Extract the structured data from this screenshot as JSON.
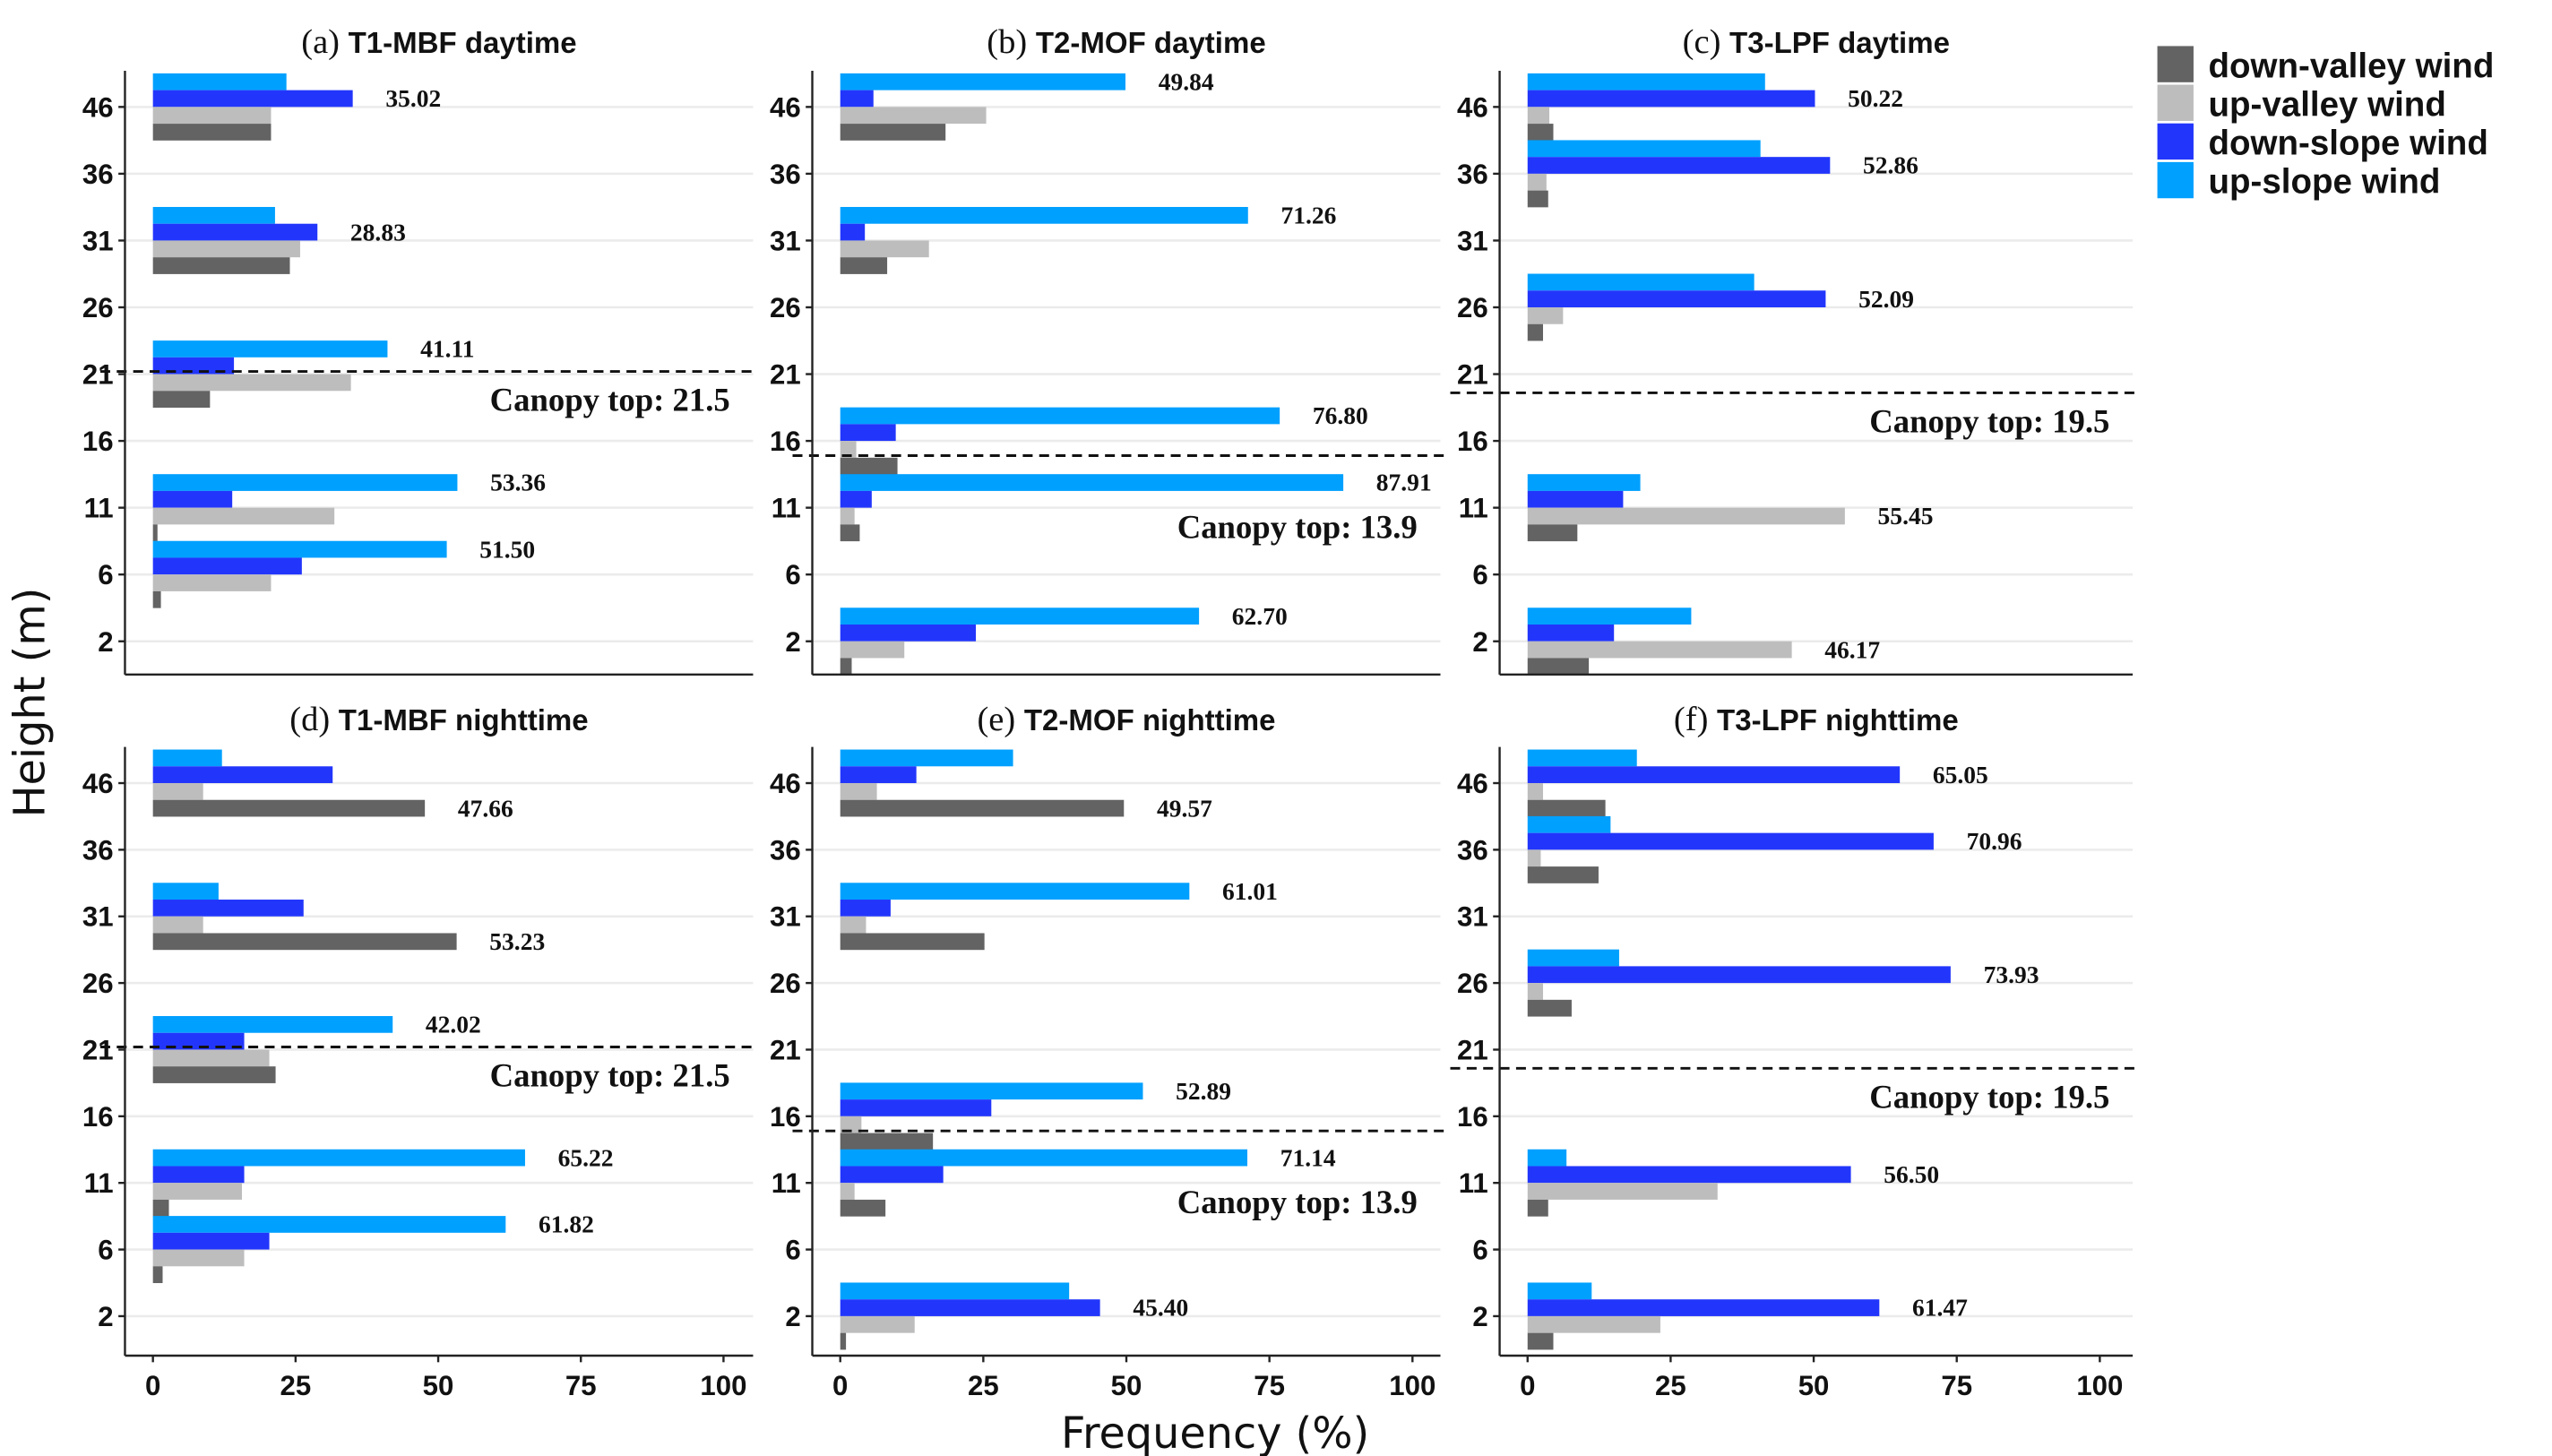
{
  "chart_data": {
    "type": "bar",
    "orientation": "horizontal",
    "xlabel": "Frequency (%)",
    "ylabel": "Height (m)",
    "xlim": [
      0,
      100
    ],
    "xticks": [
      "0",
      "25",
      "50",
      "75",
      "100"
    ],
    "height_levels": [
      "46",
      "36",
      "31",
      "26",
      "21",
      "16",
      "11",
      "6",
      "2"
    ],
    "grid": "horizontal major lines",
    "legend_position": "top-right",
    "legend": [
      {
        "key": "down_valley",
        "name": "down-valley wind",
        "color": "#636363"
      },
      {
        "key": "up_valley",
        "name": "up-valley wind",
        "color": "#bdbdbd"
      },
      {
        "key": "down_slope",
        "name": "down-slope wind",
        "color": "#2236fb"
      },
      {
        "key": "up_slope",
        "name": "up-slope wind",
        "color": "#00a0ff"
      }
    ],
    "panels": [
      {
        "prefix": "(a)",
        "title": "T1-MBF daytime",
        "canopy_top": 21.5,
        "canopy_label": "Canopy top: 21.5",
        "canopy_level_position": 21.2,
        "groups": [
          {
            "height": "46",
            "up_slope": 23.4,
            "down_slope": 35.02,
            "up_valley": 20.7,
            "down_valley": 20.7,
            "label": "35.02",
            "label_series": "down_slope"
          },
          {
            "height": "31",
            "up_slope": 21.4,
            "down_slope": 28.83,
            "up_valley": 25.8,
            "down_valley": 24.0,
            "label": "28.83",
            "label_series": "down_slope"
          },
          {
            "height": "21",
            "up_slope": 41.11,
            "down_slope": 14.2,
            "up_valley": 34.7,
            "down_valley": 10.0,
            "label": "41.11",
            "label_series": "up_slope"
          },
          {
            "height": "11",
            "up_slope": 53.36,
            "down_slope": 13.9,
            "up_valley": 31.8,
            "down_valley": 0.8,
            "label": "53.36",
            "label_series": "up_slope"
          },
          {
            "height": "6",
            "up_slope": 51.5,
            "down_slope": 26.1,
            "up_valley": 20.7,
            "down_valley": 1.4,
            "label": "51.50",
            "label_series": "up_slope"
          }
        ]
      },
      {
        "prefix": "(b)",
        "title": "T2-MOF daytime",
        "canopy_top": 13.9,
        "canopy_label": "Canopy top: 13.9",
        "canopy_level_position": 14.9,
        "groups": [
          {
            "height": "46",
            "up_slope": 49.84,
            "down_slope": 5.8,
            "up_valley": 25.5,
            "down_valley": 18.4,
            "label": "49.84",
            "label_series": "up_slope"
          },
          {
            "height": "31",
            "up_slope": 71.26,
            "down_slope": 4.3,
            "up_valley": 15.5,
            "down_valley": 8.2,
            "label": "71.26",
            "label_series": "up_slope"
          },
          {
            "height": "16",
            "up_slope": 76.8,
            "down_slope": 9.7,
            "up_valley": 2.8,
            "down_valley": 10.0,
            "label": "76.80",
            "label_series": "up_slope"
          },
          {
            "height": "11",
            "up_slope": 87.91,
            "down_slope": 5.5,
            "up_valley": 2.5,
            "down_valley": 3.4,
            "label": "87.91",
            "label_series": "up_slope"
          },
          {
            "height": "2",
            "up_slope": 62.7,
            "down_slope": 23.7,
            "up_valley": 11.2,
            "down_valley": 2.0,
            "label": "62.70",
            "label_series": "up_slope"
          }
        ]
      },
      {
        "prefix": "(c)",
        "title": "T3-LPF daytime",
        "canopy_top": 19.5,
        "canopy_label": "Canopy top: 19.5",
        "canopy_level_position": 19.6,
        "groups": [
          {
            "height": "46",
            "up_slope": 41.5,
            "down_slope": 50.22,
            "up_valley": 3.8,
            "down_valley": 4.5,
            "label": "50.22",
            "label_series": "down_slope"
          },
          {
            "height": "36",
            "up_slope": 40.7,
            "down_slope": 52.86,
            "up_valley": 3.3,
            "down_valley": 3.6,
            "label": "52.86",
            "label_series": "down_slope"
          },
          {
            "height": "26",
            "up_slope": 39.6,
            "down_slope": 52.09,
            "up_valley": 6.2,
            "down_valley": 2.7,
            "label": "52.09",
            "label_series": "down_slope"
          },
          {
            "height": "11",
            "up_slope": 19.7,
            "down_slope": 16.7,
            "up_valley": 55.45,
            "down_valley": 8.7,
            "label": "55.45",
            "label_series": "up_valley"
          },
          {
            "height": "2",
            "up_slope": 28.6,
            "down_slope": 15.1,
            "up_valley": 46.17,
            "down_valley": 10.7,
            "label": "46.17",
            "label_series": "up_valley"
          }
        ]
      },
      {
        "prefix": "(d)",
        "title": "T1-MBF nighttime",
        "canopy_top": 21.5,
        "canopy_label": "Canopy top: 21.5",
        "canopy_level_position": 21.2,
        "groups": [
          {
            "height": "46",
            "up_slope": 12.1,
            "down_slope": 31.5,
            "up_valley": 8.8,
            "down_valley": 47.66,
            "label": "47.66",
            "label_series": "down_valley"
          },
          {
            "height": "31",
            "up_slope": 11.5,
            "down_slope": 26.4,
            "up_valley": 8.8,
            "down_valley": 53.23,
            "label": "53.23",
            "label_series": "down_valley"
          },
          {
            "height": "21",
            "up_slope": 42.02,
            "down_slope": 16.0,
            "up_valley": 20.4,
            "down_valley": 21.5,
            "label": "42.02",
            "label_series": "up_slope"
          },
          {
            "height": "11",
            "up_slope": 65.22,
            "down_slope": 16.0,
            "up_valley": 15.6,
            "down_valley": 2.8,
            "label": "65.22",
            "label_series": "up_slope"
          },
          {
            "height": "6",
            "up_slope": 61.82,
            "down_slope": 20.4,
            "up_valley": 16.0,
            "down_valley": 1.7,
            "label": "61.82",
            "label_series": "up_slope"
          }
        ]
      },
      {
        "prefix": "(e)",
        "title": "T2-MOF nighttime",
        "canopy_top": 13.9,
        "canopy_label": "Canopy top: 13.9",
        "canopy_level_position": 14.9,
        "groups": [
          {
            "height": "46",
            "up_slope": 30.2,
            "down_slope": 13.3,
            "up_valley": 6.4,
            "down_valley": 49.57,
            "label": "49.57",
            "label_series": "down_valley"
          },
          {
            "height": "31",
            "up_slope": 61.01,
            "down_slope": 8.8,
            "up_valley": 4.5,
            "down_valley": 25.2,
            "label": "61.01",
            "label_series": "up_slope"
          },
          {
            "height": "16",
            "up_slope": 52.89,
            "down_slope": 26.4,
            "up_valley": 3.7,
            "down_valley": 16.2,
            "label": "52.89",
            "label_series": "up_slope"
          },
          {
            "height": "11",
            "up_slope": 71.14,
            "down_slope": 18.0,
            "up_valley": 2.5,
            "down_valley": 7.9,
            "label": "71.14",
            "label_series": "up_slope"
          },
          {
            "height": "2",
            "up_slope": 40.0,
            "down_slope": 45.4,
            "up_valley": 13.0,
            "down_valley": 1.0,
            "label": "45.40",
            "label_series": "down_slope"
          }
        ]
      },
      {
        "prefix": "(f)",
        "title": "T3-LPF nighttime",
        "canopy_top": 19.5,
        "canopy_label": "Canopy top: 19.5",
        "canopy_level_position": 19.6,
        "groups": [
          {
            "height": "46",
            "up_slope": 19.1,
            "down_slope": 65.05,
            "up_valley": 2.7,
            "down_valley": 13.6,
            "label": "65.05",
            "label_series": "down_slope"
          },
          {
            "height": "36",
            "up_slope": 14.5,
            "down_slope": 70.96,
            "up_valley": 2.3,
            "down_valley": 12.4,
            "label": "70.96",
            "label_series": "down_slope"
          },
          {
            "height": "26",
            "up_slope": 16.0,
            "down_slope": 73.93,
            "up_valley": 2.7,
            "down_valley": 7.7,
            "label": "73.93",
            "label_series": "down_slope"
          },
          {
            "height": "11",
            "up_slope": 6.8,
            "down_slope": 56.5,
            "up_valley": 33.2,
            "down_valley": 3.6,
            "label": "56.50",
            "label_series": "down_slope"
          },
          {
            "height": "2",
            "up_slope": 11.2,
            "down_slope": 61.47,
            "up_valley": 23.2,
            "down_valley": 4.5,
            "label": "61.47",
            "label_series": "down_slope"
          }
        ]
      }
    ]
  }
}
